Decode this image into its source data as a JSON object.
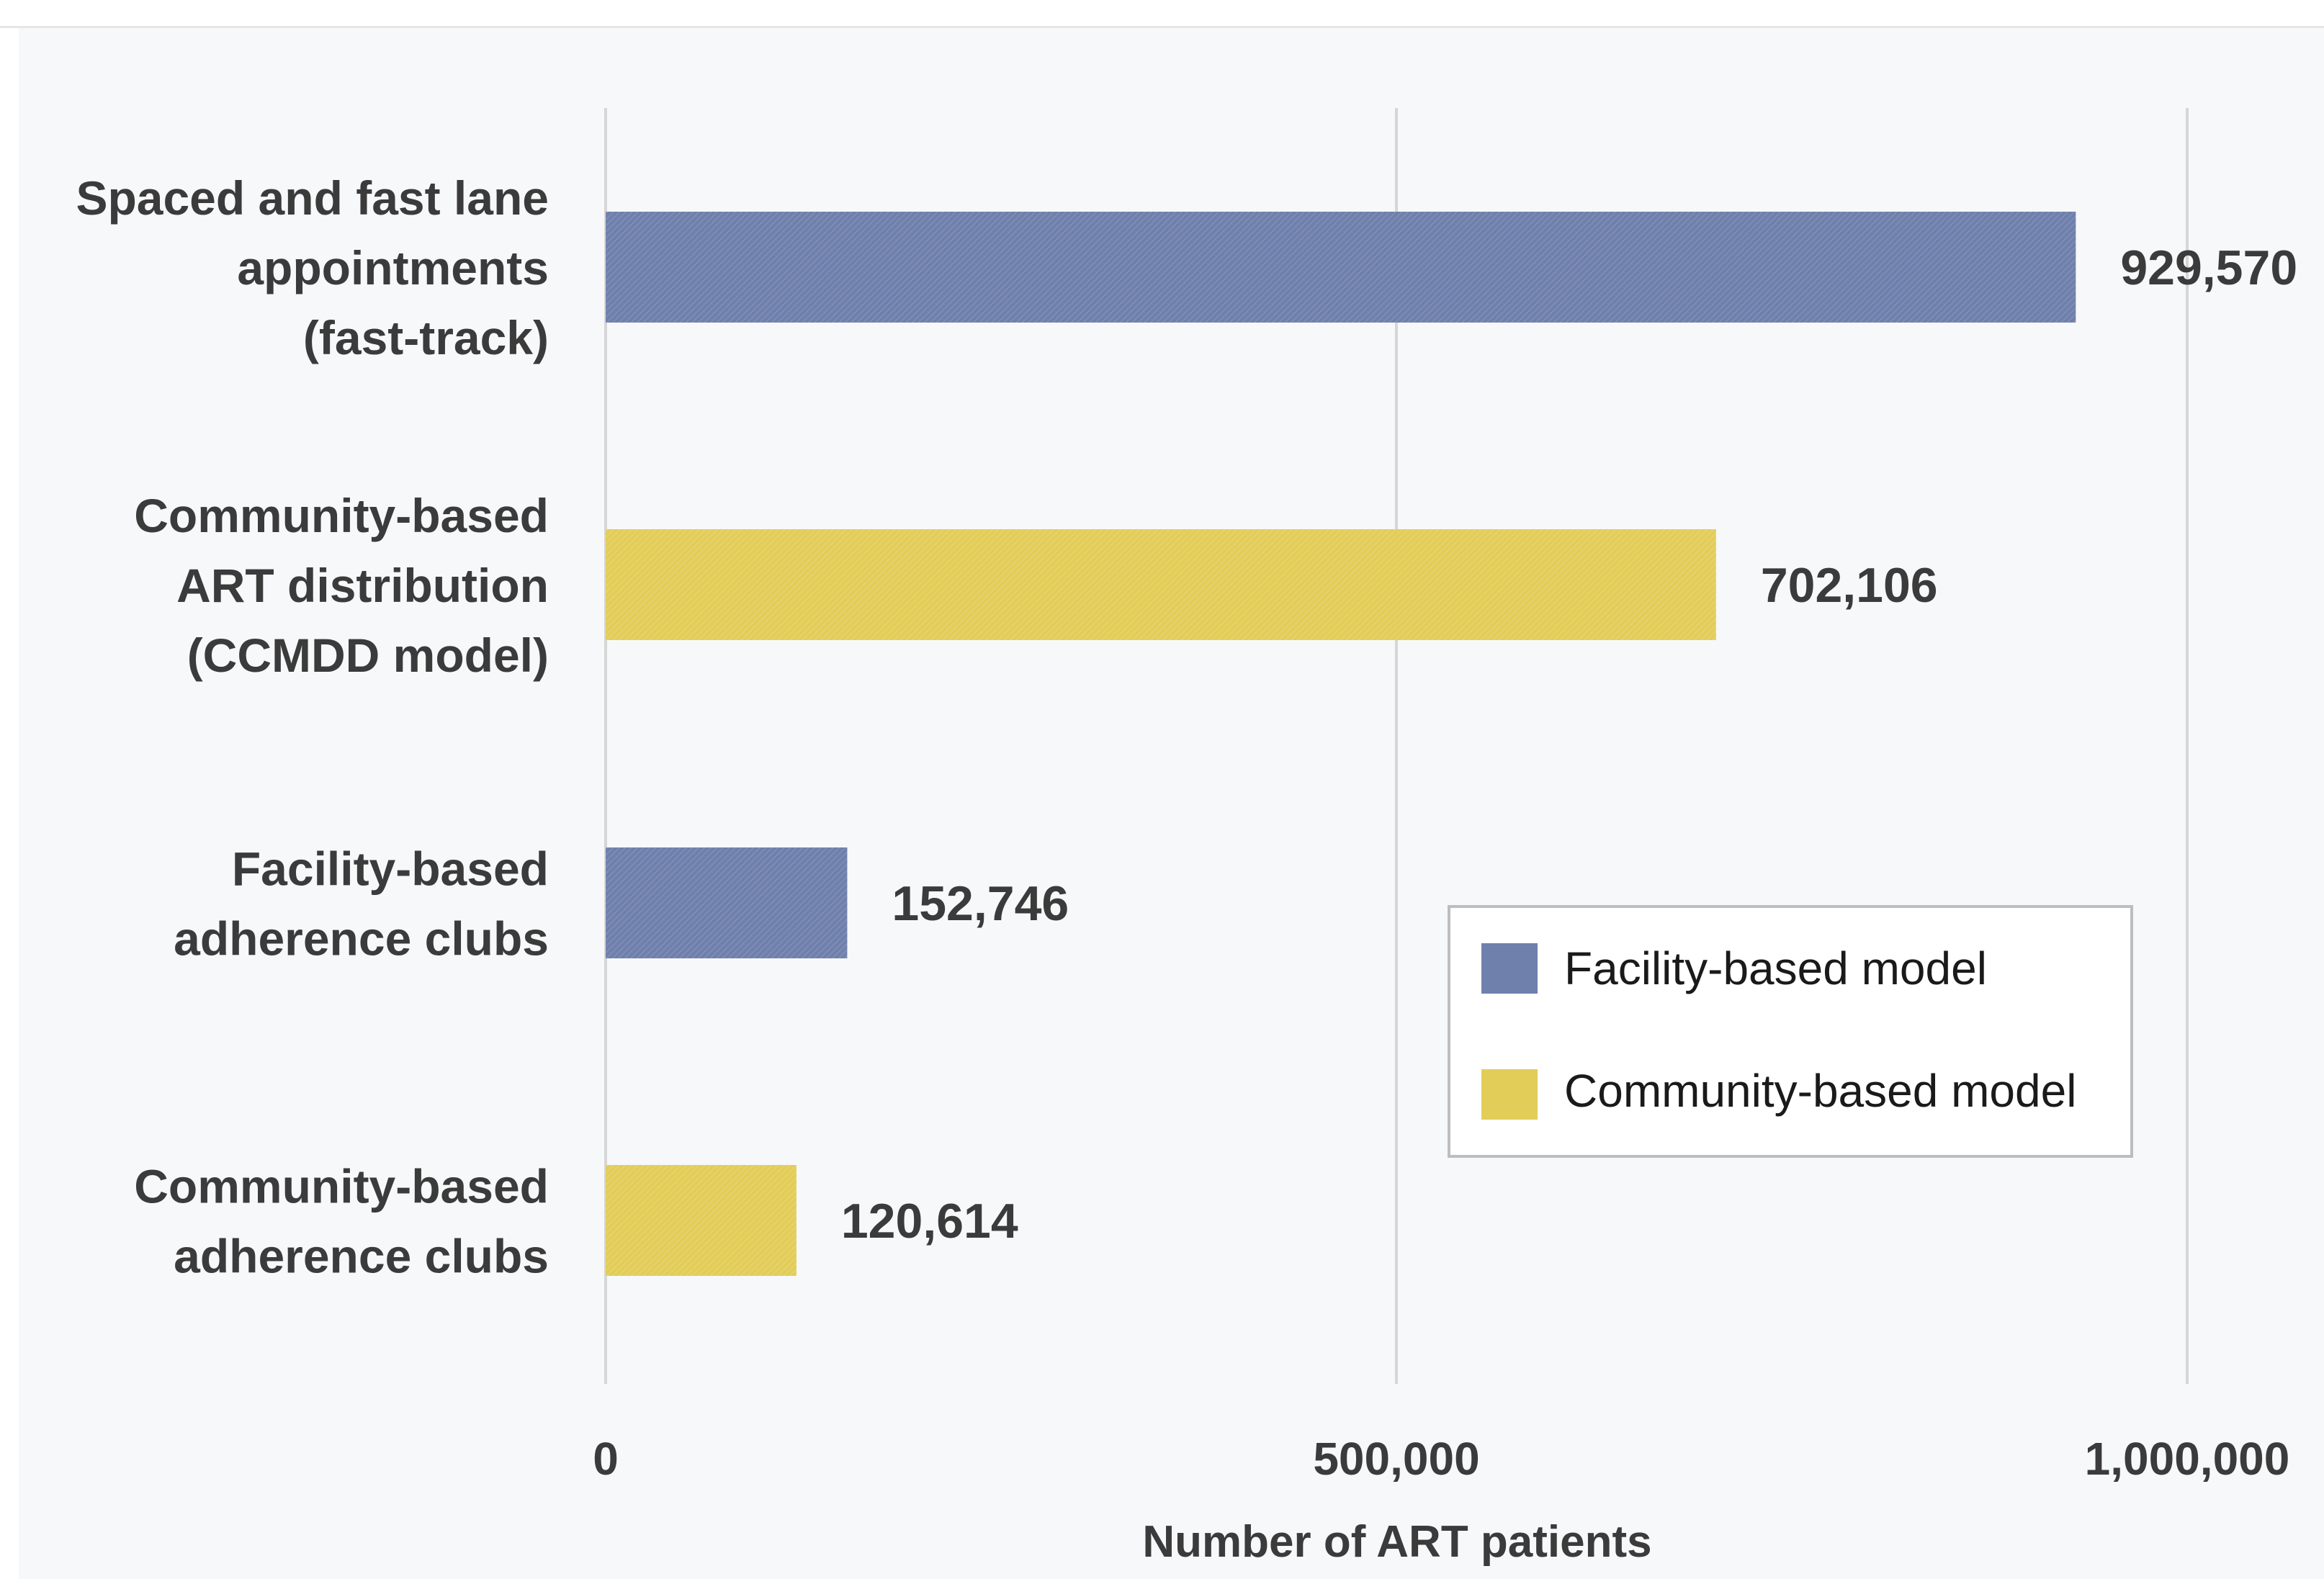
{
  "chart_data": {
    "type": "bar",
    "orientation": "horizontal",
    "categories": [
      [
        "Spaced and fast lane",
        "appointments",
        "(fast-track)"
      ],
      [
        "Community-based",
        "ART distribution",
        "(CCMDD model)"
      ],
      [
        "Facility-based",
        "adherence clubs"
      ],
      [
        "Community-based",
        "adherence clubs"
      ]
    ],
    "values": [
      929570,
      702106,
      152746,
      120614
    ],
    "value_labels": [
      "929,570",
      "702,106",
      "152,746",
      "120,614"
    ],
    "bar_series": [
      "Facility-based model",
      "Community-based model",
      "Facility-based model",
      "Community-based model"
    ],
    "series": [
      {
        "name": "Facility-based model",
        "color": "#6f80ac"
      },
      {
        "name": "Community-based model",
        "color": "#e3cd59"
      }
    ],
    "xlabel": "Number of ART patients",
    "ylabel": "",
    "title": "",
    "xlim": [
      0,
      1000000
    ],
    "xticks": [
      0,
      500000,
      1000000
    ],
    "xtick_labels": [
      "0",
      "500,000",
      "1,000,000"
    ],
    "grid": "vertical",
    "legend_position": "bottom-right"
  },
  "colors": {
    "background": "#f7f8fa",
    "gridline": "#d6d6d6",
    "text": "#3b3b3b"
  }
}
